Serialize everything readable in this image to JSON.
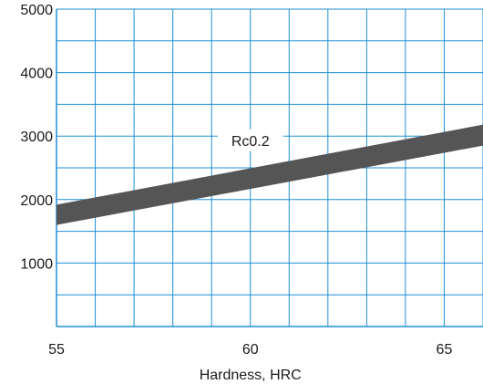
{
  "chart_data": {
    "type": "area",
    "title": "",
    "xlabel": "Hardness, HRC",
    "ylabel": "",
    "xlim": [
      55,
      66
    ],
    "ylim": [
      0,
      5000
    ],
    "x_ticks": [
      55,
      60,
      65
    ],
    "y_ticks": [
      1000,
      2000,
      3000,
      4000,
      5000
    ],
    "x_minor_step": 1,
    "y_minor_step": 500,
    "grid": true,
    "colors": {
      "grid": "#1f8fd6",
      "band": "#555555"
    },
    "series": [
      {
        "name": "Rc0.2",
        "x": [
          55,
          66
        ],
        "lower": [
          1600,
          2850
        ],
        "upper": [
          1920,
          3180
        ]
      }
    ],
    "annotations": [
      {
        "text": "Rc0.2",
        "x": 60,
        "y": 2920
      }
    ]
  }
}
